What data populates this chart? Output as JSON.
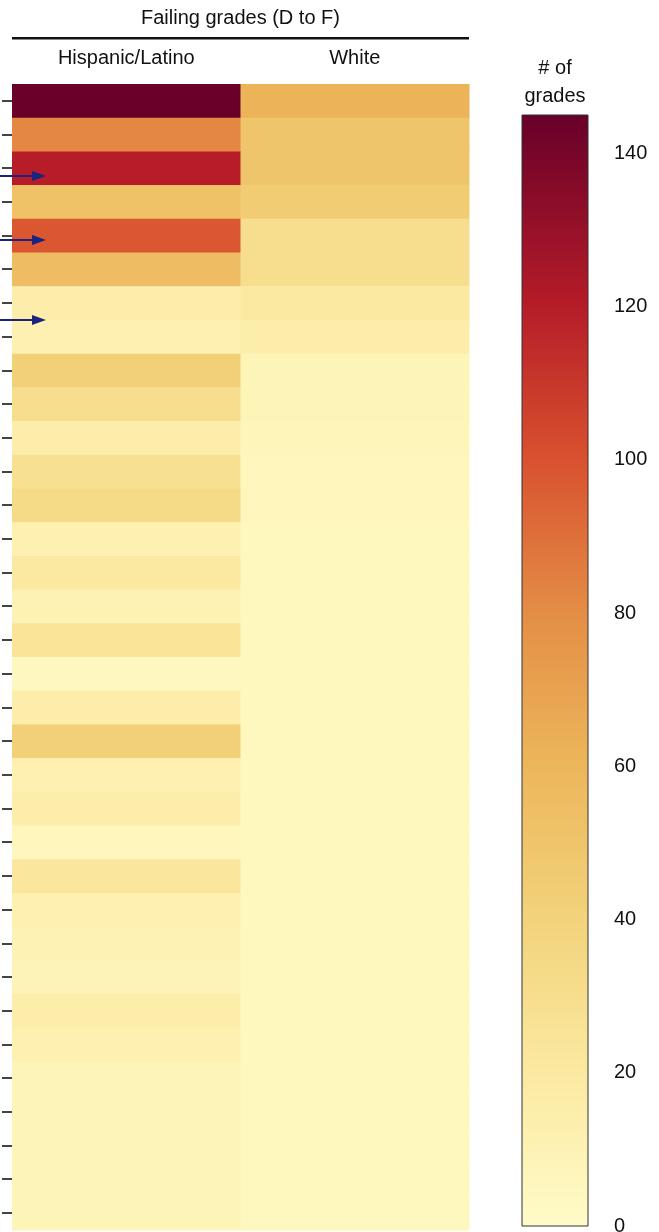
{
  "chart_data": {
    "type": "heatmap",
    "title": "Failing grades (D to F)",
    "clabel": "# of grades",
    "categories": [
      "Hispanic/Latino",
      "White"
    ],
    "y_categories": [
      null,
      null,
      null,
      null,
      null,
      null,
      null,
      null,
      null,
      null,
      null,
      null,
      null,
      null,
      null,
      null,
      null,
      null,
      null,
      null,
      null,
      null,
      null,
      null,
      null,
      null,
      null,
      null,
      null,
      null,
      null,
      null,
      null,
      null
    ],
    "cells": [
      [
        145,
        62
      ],
      [
        82,
        50
      ],
      [
        120,
        50
      ],
      [
        52,
        45
      ],
      [
        98,
        30
      ],
      [
        55,
        30
      ],
      [
        15,
        20
      ],
      [
        12,
        15
      ],
      [
        42,
        8
      ],
      [
        30,
        8
      ],
      [
        15,
        7
      ],
      [
        28,
        6
      ],
      [
        33,
        6
      ],
      [
        12,
        5
      ],
      [
        20,
        5
      ],
      [
        10,
        5
      ],
      [
        25,
        5
      ],
      [
        4,
        5
      ],
      [
        15,
        5
      ],
      [
        42,
        5
      ],
      [
        12,
        5
      ],
      [
        15,
        5
      ],
      [
        6,
        5
      ],
      [
        22,
        5
      ],
      [
        12,
        5
      ],
      [
        10,
        5
      ],
      [
        9,
        5
      ],
      [
        15,
        5
      ],
      [
        12,
        5
      ],
      [
        8,
        5
      ],
      [
        8,
        5
      ],
      [
        8,
        5
      ],
      [
        8,
        5
      ],
      [
        8,
        5
      ]
    ],
    "clim": [
      0,
      145
    ],
    "cticks": [
      0,
      20,
      40,
      60,
      80,
      100,
      120,
      140
    ]
  }
}
